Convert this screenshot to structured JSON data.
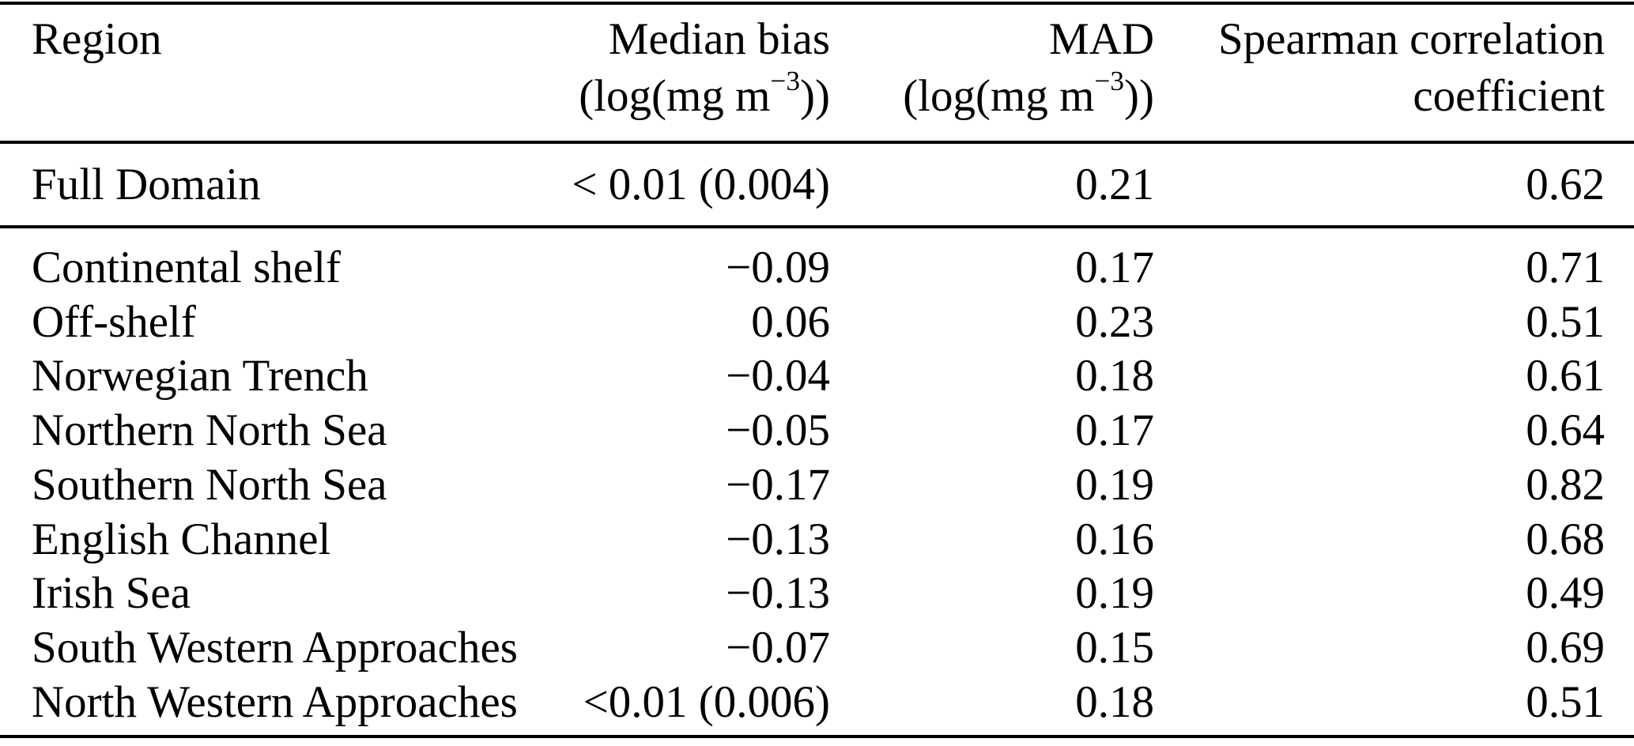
{
  "table": {
    "header": {
      "region": {
        "line1": "Region",
        "unit_pre": "",
        "unit_sup": "",
        "unit_post": ""
      },
      "median_bias": {
        "line1": "Median bias",
        "unit_pre": "(log(mg m",
        "unit_sup": "−3",
        "unit_post": "))"
      },
      "mad": {
        "line1": "MAD",
        "unit_pre": "(log(mg m",
        "unit_sup": "−3",
        "unit_post": "))"
      },
      "spearman": {
        "line1": "Spearman correlation",
        "unit_pre": "coefficient",
        "unit_sup": "",
        "unit_post": ""
      }
    },
    "full_domain_row": {
      "region": "Full Domain",
      "median_bias": "< 0.01 (0.004)",
      "mad": "0.21",
      "spearman": "0.62"
    },
    "rows": [
      {
        "region": "Continental shelf",
        "median_bias": "−0.09",
        "mad": "0.17",
        "spearman": "0.71"
      },
      {
        "region": "Off-shelf",
        "median_bias": "0.06",
        "mad": "0.23",
        "spearman": "0.51"
      },
      {
        "region": "Norwegian Trench",
        "median_bias": "−0.04",
        "mad": "0.18",
        "spearman": "0.61"
      },
      {
        "region": "Northern North Sea",
        "median_bias": "−0.05",
        "mad": "0.17",
        "spearman": "0.64"
      },
      {
        "region": "Southern North Sea",
        "median_bias": "−0.17",
        "mad": "0.19",
        "spearman": "0.82"
      },
      {
        "region": "English Channel",
        "median_bias": "−0.13",
        "mad": "0.16",
        "spearman": "0.68"
      },
      {
        "region": "Irish Sea",
        "median_bias": "−0.13",
        "mad": "0.19",
        "spearman": "0.49"
      },
      {
        "region": "South Western Approaches",
        "median_bias": "−0.07",
        "mad": "0.15",
        "spearman": "0.69"
      },
      {
        "region": "North Western Approaches",
        "median_bias": "<0.01 (0.006)",
        "mad": "0.18",
        "spearman": "0.51"
      }
    ],
    "colors": {
      "text": "#000000",
      "background": "#ffffff",
      "rule": "#000000"
    }
  }
}
